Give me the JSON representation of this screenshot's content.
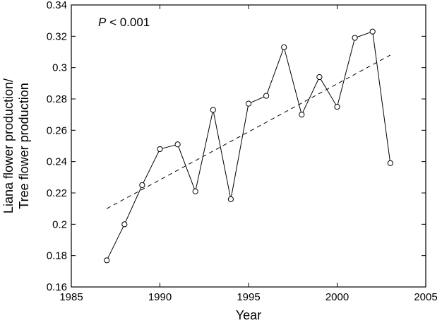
{
  "chart_data": {
    "type": "scatter",
    "xlabel": "Year",
    "ylabel_lines": [
      "Liana flower production/",
      "Tree flower production"
    ],
    "xlim": [
      1985,
      2005
    ],
    "ylim": [
      0.16,
      0.34
    ],
    "x_ticks": [
      1985,
      1990,
      1995,
      2000,
      2005
    ],
    "y_ticks": [
      0.16,
      0.18,
      0.2,
      0.22,
      0.24,
      0.26,
      0.28,
      0.3,
      0.32,
      0.34
    ],
    "x_tick_labels": [
      "1985",
      "1990",
      "1995",
      "2000",
      "2005"
    ],
    "y_tick_labels": [
      "0.16",
      "0.18",
      "0.2",
      "0.22",
      "0.24",
      "0.26",
      "0.28",
      "0.3",
      "0.32",
      "0.34"
    ],
    "annotation": {
      "italic": "P",
      "rest": " < 0.001"
    },
    "grid": false,
    "series": [
      {
        "style": "line-with-open-circles",
        "color": "#000000",
        "x": [
          1987,
          1988,
          1989,
          1990,
          1991,
          1992,
          1993,
          1994,
          1995,
          1996,
          1997,
          1998,
          1999,
          2000,
          2001,
          2002,
          2003
        ],
        "y": [
          0.177,
          0.2,
          0.225,
          0.248,
          0.251,
          0.221,
          0.273,
          0.216,
          0.277,
          0.282,
          0.313,
          0.27,
          0.294,
          0.275,
          0.319,
          0.323,
          0.239
        ]
      }
    ],
    "trend_line": {
      "style": "dashed",
      "x": [
        1987,
        2003
      ],
      "y": [
        0.21,
        0.308
      ]
    }
  }
}
